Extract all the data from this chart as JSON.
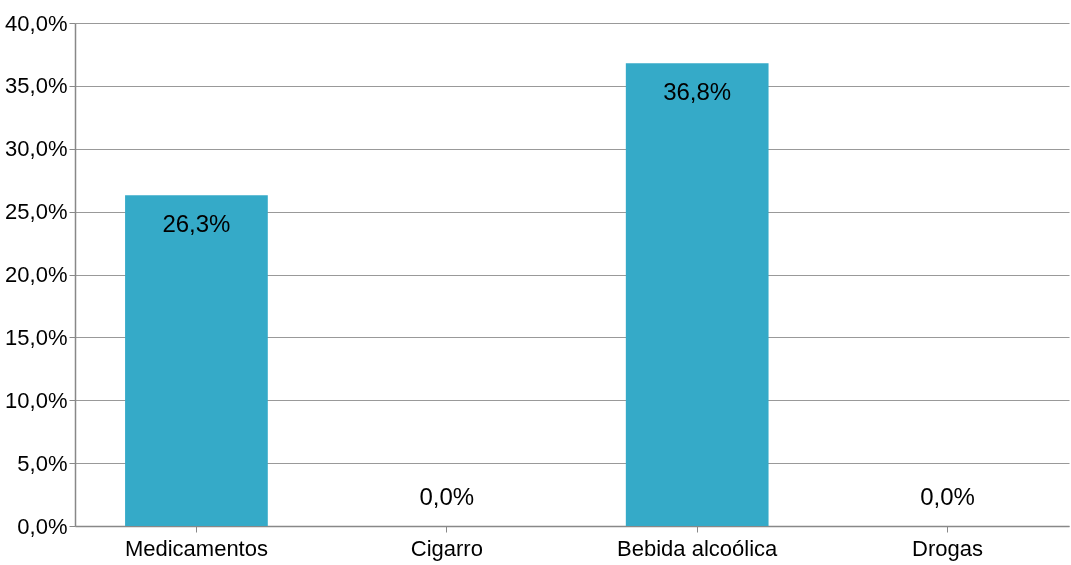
{
  "chart_data": {
    "type": "bar",
    "categories": [
      "Medicamentos",
      "Cigarro",
      "Bebida alcoólica",
      "Drogas"
    ],
    "values": [
      26.3,
      0,
      36.8,
      0
    ],
    "value_labels": [
      "26,3%",
      "0,0%",
      "36,8%",
      "0,0%"
    ],
    "color": "#35aac8",
    "ylim": [
      0,
      40
    ],
    "yticks": [
      {
        "value": 0,
        "label": "0,0%"
      },
      {
        "value": 5,
        "label": "5,0%"
      },
      {
        "value": 10,
        "label": "10,0%"
      },
      {
        "value": 15,
        "label": "15,0%"
      },
      {
        "value": 20,
        "label": "20,0%"
      },
      {
        "value": 25,
        "label": "25,0%"
      },
      {
        "value": 30,
        "label": "30,0%"
      },
      {
        "value": 35,
        "label": "35,0%"
      },
      {
        "value": 40,
        "label": "40,0%"
      }
    ],
    "grid": "y"
  }
}
